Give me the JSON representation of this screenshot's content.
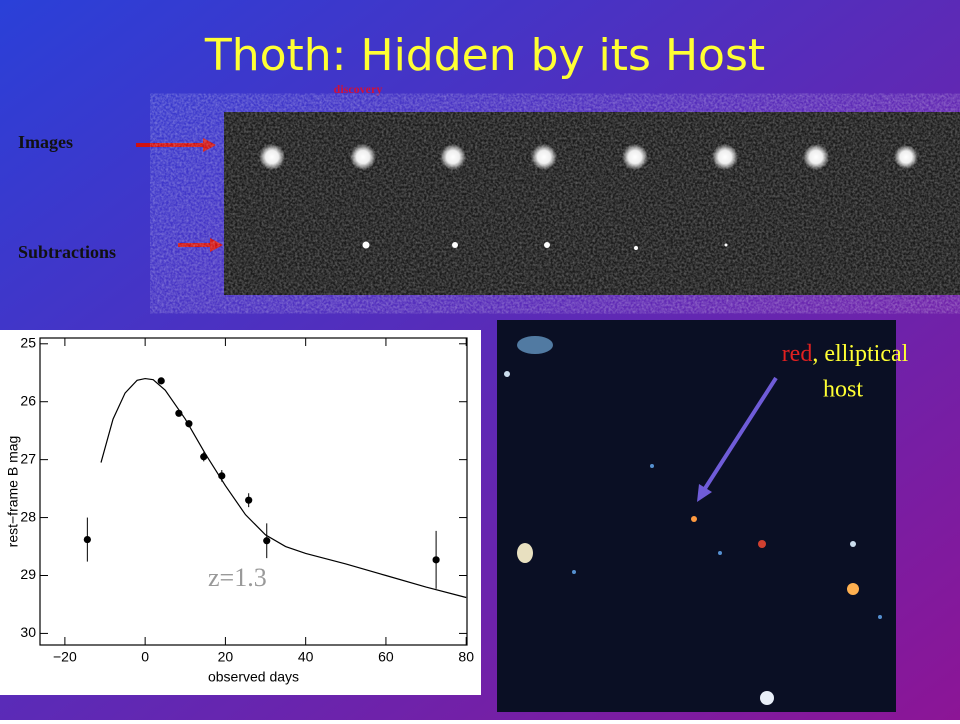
{
  "slide": {
    "title": "Thoth: Hidden by its Host",
    "discovery_label": "discovery",
    "row_labels": [
      "Images",
      "Subtractions"
    ],
    "host_label": {
      "red_word": "red",
      "rest": ", elliptical",
      "second_line": "host"
    }
  },
  "chart_data": {
    "type": "scatter",
    "xlabel": "observed days",
    "ylabel": "rest−frame B mag",
    "annotation": "z=1.3",
    "xlim": [
      -26.2,
      80.2
    ],
    "ylim": [
      24.9,
      30.2
    ],
    "y_inverted": true,
    "xticks": [
      {
        "value": -20,
        "label": "−20"
      },
      0,
      20,
      40,
      60,
      80
    ],
    "yticks": [
      25,
      26,
      27,
      28,
      29,
      30
    ],
    "points": {
      "x": [
        -14.4,
        4,
        8.4,
        10.9,
        14.6,
        19.1,
        25.8,
        30.3,
        72.5
      ],
      "values": [
        28.38,
        25.64,
        26.2,
        26.38,
        26.95,
        27.28,
        27.7,
        28.4,
        28.73
      ],
      "errors": [
        0.38,
        0.03,
        0.05,
        0.06,
        0.08,
        0.1,
        0.12,
        0.3,
        0.5
      ],
      "color": "#000000"
    },
    "fit": {
      "x": [
        -11,
        -8,
        -5,
        -2,
        0,
        2,
        5,
        10,
        15,
        20,
        25,
        30,
        35,
        40,
        50,
        60,
        70,
        80
      ],
      "values": [
        27.05,
        26.3,
        25.85,
        25.63,
        25.6,
        25.62,
        25.8,
        26.3,
        26.9,
        27.45,
        27.95,
        28.3,
        28.5,
        28.62,
        28.8,
        29.0,
        29.2,
        29.38
      ],
      "color": "#000000"
    }
  }
}
